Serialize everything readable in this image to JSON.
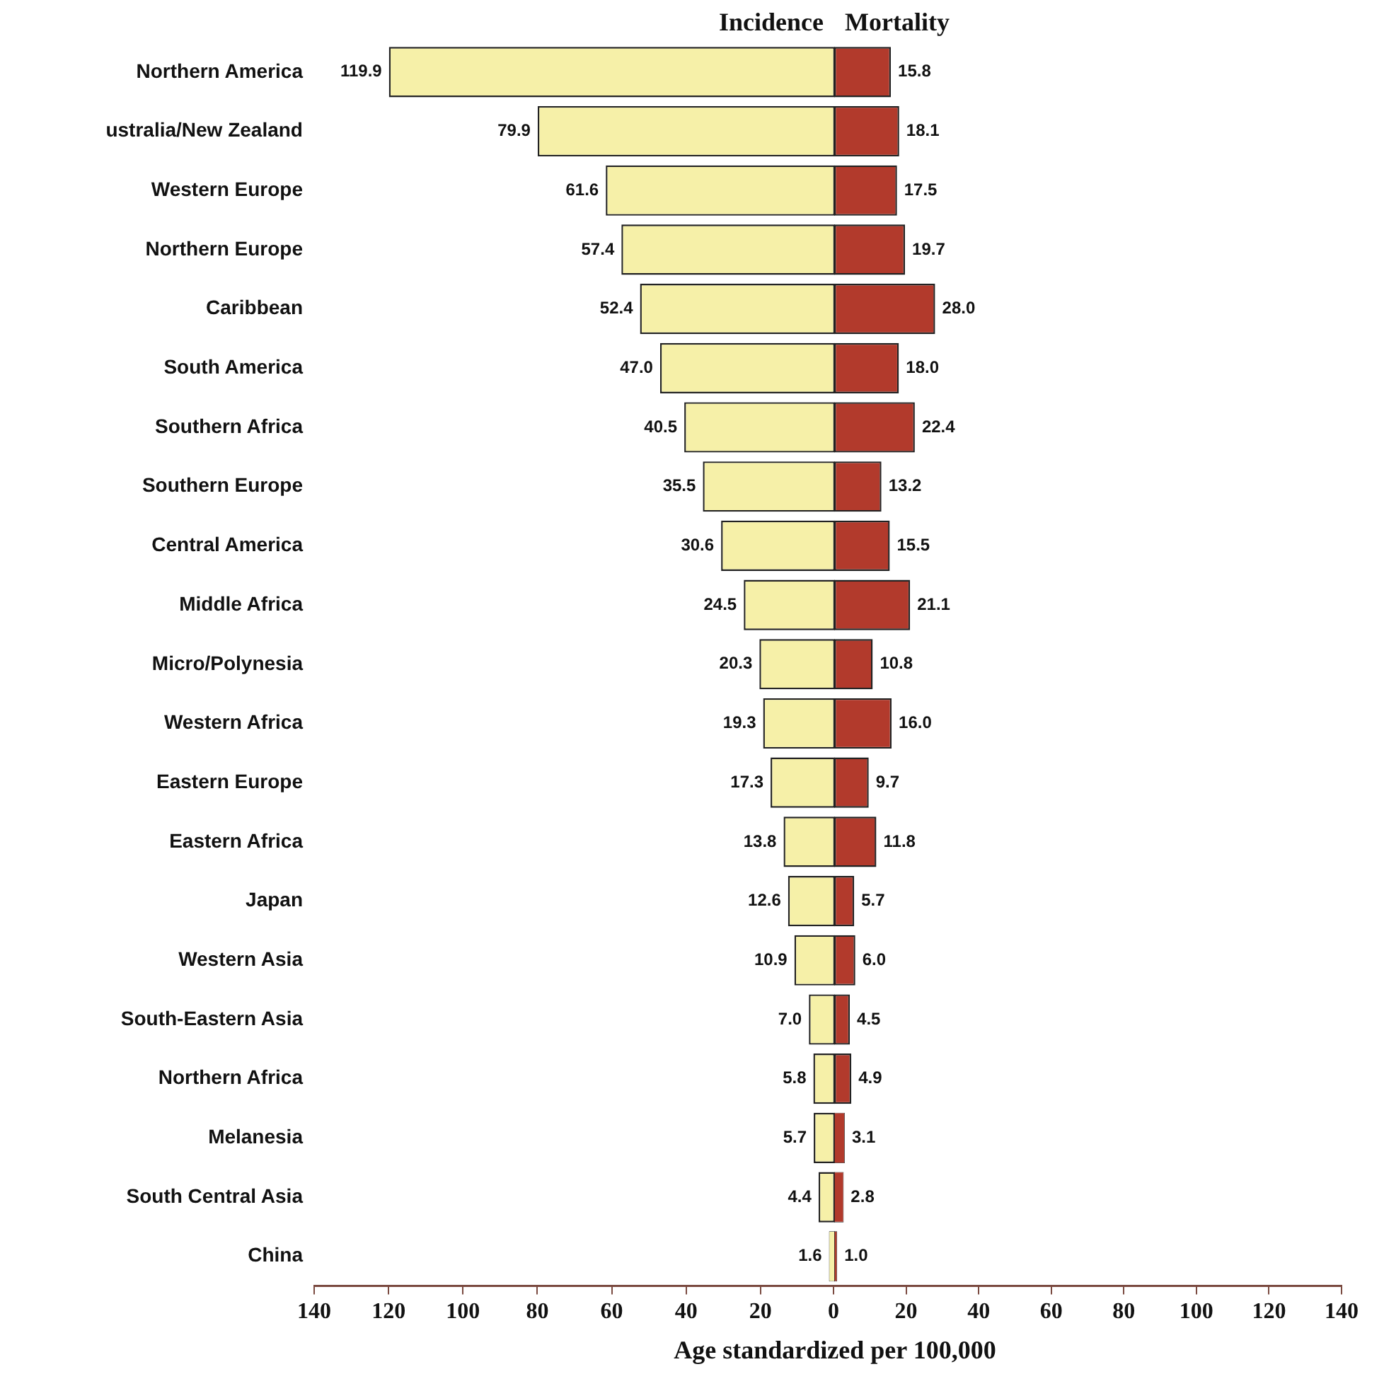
{
  "chart_data": [
    {
      "type": "bar",
      "orientation": "horizontal",
      "xlabel": "Age standardized per 100,000",
      "categories": [
        "Northern America",
        "ustralia/New Zealand",
        "Western Europe",
        "Northern Europe",
        "Caribbean",
        "South America",
        "Southern Africa",
        "Southern Europe",
        "Central America",
        "Middle Africa",
        "Micro/Polynesia",
        "Western Africa",
        "Eastern Europe",
        "Eastern Africa",
        "Japan",
        "Western Asia",
        "South-Eastern Asia",
        "Northern Africa",
        "Melanesia",
        "South Central Asia",
        "China"
      ],
      "series": [
        {
          "name": "Incidence",
          "color": "#f6f0a8",
          "values": [
            119.9,
            79.9,
            61.6,
            57.4,
            52.4,
            47.0,
            40.5,
            35.5,
            30.6,
            24.5,
            20.3,
            19.3,
            17.3,
            13.8,
            12.6,
            10.9,
            7.0,
            5.8,
            5.7,
            4.4,
            1.6
          ],
          "value_labels": [
            "119.9",
            "79.9",
            "61.6",
            "57.4",
            "52.4",
            "47.0",
            "40.5",
            "35.5",
            "30.6",
            "24.5",
            "20.3",
            "19.3",
            "17.3",
            "13.8",
            "12.6",
            "10.9",
            "7.0",
            "5.8",
            "5.7",
            "4.4",
            "1.6"
          ]
        }
      ],
      "xlim": [
        140,
        0
      ],
      "xticks": [
        140,
        120,
        100,
        80,
        60,
        40,
        20
      ],
      "grid": false,
      "legend": false
    },
    {
      "type": "bar",
      "orientation": "horizontal",
      "series": [
        {
          "name": "Mortality",
          "color": "#b23a2c",
          "values": [
            15.8,
            18.1,
            17.5,
            19.7,
            28.0,
            18.0,
            22.4,
            13.2,
            15.5,
            21.1,
            10.8,
            16.0,
            9.7,
            11.8,
            5.7,
            6.0,
            4.5,
            4.9,
            3.1,
            2.8,
            1.0
          ],
          "value_labels": [
            "15.8",
            "18.1",
            "17.5",
            "19.7",
            "28.0",
            "18.0",
            "22.4",
            "13.2",
            "15.5",
            "21.1",
            "10.8",
            "16.0",
            "9.7",
            "11.8",
            "5.7",
            "6.0",
            "4.5",
            "4.9",
            "3.1",
            "2.8",
            "1.0"
          ]
        }
      ],
      "xlim": [
        0,
        140
      ],
      "xticks": [
        0,
        20,
        40,
        60,
        80,
        100,
        120,
        140
      ],
      "tick_labels": "x",
      "grid": false,
      "legend": false
    }
  ]
}
